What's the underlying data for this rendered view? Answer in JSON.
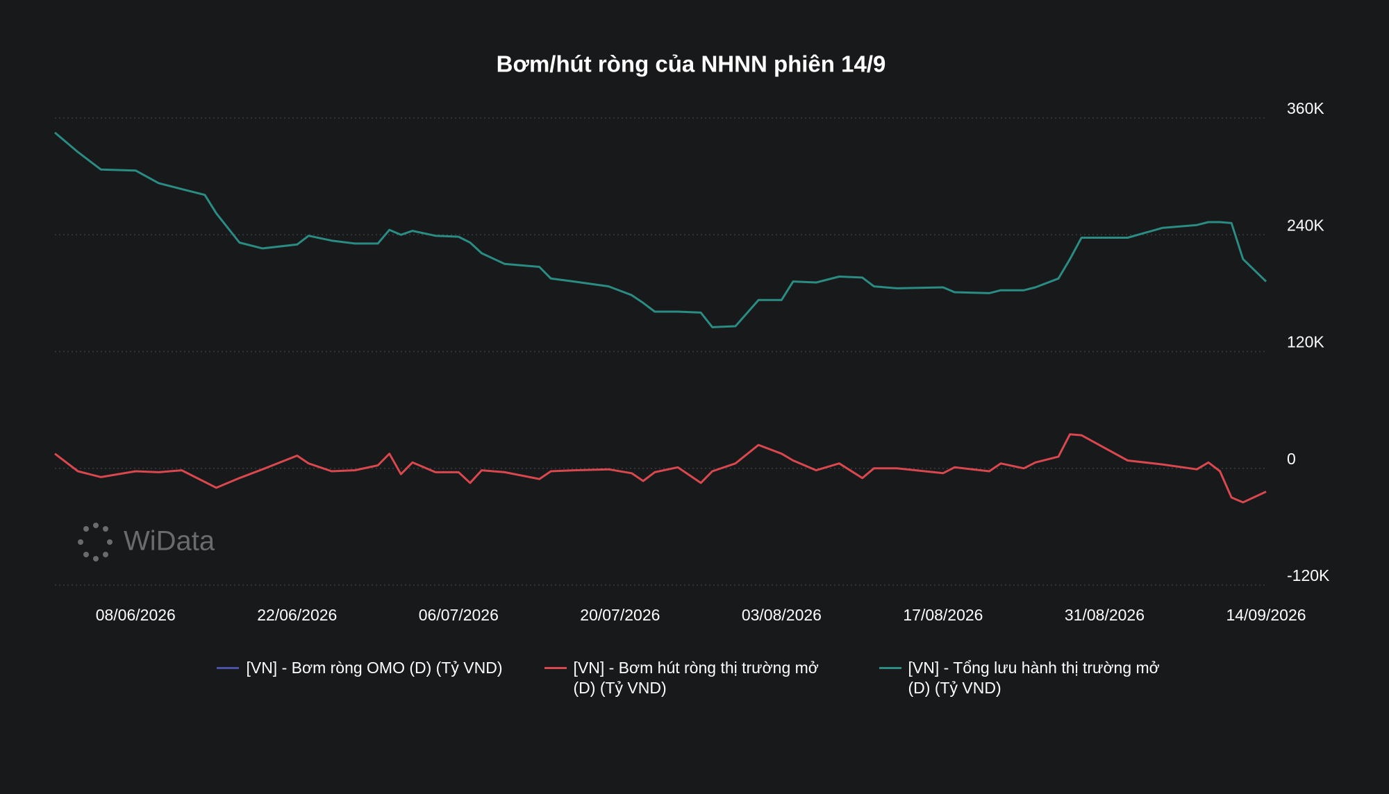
{
  "chart_data": {
    "type": "line",
    "title": "Bơm/hút ròng của NHNN phiên 14/9",
    "watermark": "WiData",
    "x": [
      "01/06/2026",
      "03/06/2026",
      "05/06/2026",
      "08/06/2026",
      "10/06/2026",
      "12/06/2026",
      "14/06/2026",
      "15/06/2026",
      "17/06/2026",
      "19/06/2026",
      "22/06/2026",
      "23/06/2026",
      "25/06/2026",
      "27/06/2026",
      "29/06/2026",
      "30/06/2026",
      "01/07/2026",
      "02/07/2026",
      "04/07/2026",
      "06/07/2026",
      "07/07/2026",
      "08/07/2026",
      "10/07/2026",
      "13/07/2026",
      "14/07/2026",
      "16/07/2026",
      "19/07/2026",
      "21/07/2026",
      "22/07/2026",
      "23/07/2026",
      "25/07/2026",
      "27/07/2026",
      "28/07/2026",
      "30/07/2026",
      "01/08/2026",
      "03/08/2026",
      "04/08/2026",
      "06/08/2026",
      "08/08/2026",
      "10/08/2026",
      "11/08/2026",
      "13/08/2026",
      "17/08/2026",
      "18/08/2026",
      "21/08/2026",
      "22/08/2026",
      "24/08/2026",
      "25/08/2026",
      "27/08/2026",
      "28/08/2026",
      "29/08/2026",
      "02/09/2026",
      "05/09/2026",
      "08/09/2026",
      "09/09/2026",
      "10/09/2026",
      "11/09/2026",
      "12/09/2026",
      "14/09/2026"
    ],
    "series": [
      {
        "name": "[VN] - Bơm ròng OMO (D) (Tỷ VND)",
        "color": "#4b50a8",
        "values": [
          null,
          null,
          null,
          null,
          null,
          null,
          null,
          null,
          null,
          null,
          null,
          null,
          null,
          null,
          null,
          null,
          null,
          null,
          null,
          null,
          null,
          null,
          null,
          null,
          null,
          null,
          null,
          null,
          null,
          null,
          null,
          null,
          null,
          null,
          null,
          null,
          null,
          null,
          null,
          null,
          null,
          null,
          null,
          null,
          null,
          null,
          null,
          null,
          null,
          null,
          null,
          null,
          null,
          null,
          null,
          null,
          null,
          null,
          null
        ]
      },
      {
        "name": "[VN] - Bơm hút ròng thị trường mở (D) (Tỷ VND)",
        "color": "#d9484f",
        "values": [
          15000,
          -3000,
          -9000,
          -3000,
          -4000,
          -2000,
          -14000,
          -20000,
          -10000,
          -1000,
          13000,
          5000,
          -3000,
          -2000,
          3000,
          15000,
          -6000,
          6000,
          -4000,
          -4000,
          -15000,
          -2000,
          -4000,
          -11000,
          -3000,
          -2000,
          -1000,
          -5000,
          -13000,
          -4000,
          1000,
          -15000,
          -3000,
          5000,
          24000,
          15000,
          8000,
          -2000,
          5000,
          -10000,
          0,
          0,
          -5000,
          1000,
          -3000,
          5000,
          0,
          6000,
          12000,
          35000,
          34000,
          8000,
          4000,
          -1000,
          6000,
          -3000,
          -30000,
          -35000,
          -24000
        ]
      },
      {
        "name": "[VN] - Tổng lưu hành thị trường mở (D) (Tỷ VND)",
        "color": "#2a8c82",
        "values": [
          345000,
          325000,
          307000,
          306000,
          293000,
          287000,
          281000,
          262000,
          232000,
          226000,
          230000,
          239000,
          234000,
          231000,
          231000,
          245000,
          240000,
          244000,
          239000,
          238000,
          232000,
          221000,
          210000,
          207000,
          195000,
          192000,
          187000,
          178000,
          170000,
          161000,
          161000,
          160000,
          145000,
          146000,
          173000,
          173000,
          192000,
          191000,
          197000,
          196000,
          187000,
          185000,
          186000,
          181000,
          180000,
          183000,
          183000,
          186000,
          195000,
          215000,
          237000,
          237000,
          247000,
          250000,
          253000,
          253000,
          252000,
          215000,
          192000
        ]
      }
    ],
    "xlim": [
      "01/06/2026",
      "14/09/2026"
    ],
    "xticks": [
      "08/06/2026",
      "22/06/2026",
      "06/07/2026",
      "20/07/2026",
      "03/08/2026",
      "17/08/2026",
      "31/08/2026",
      "14/09/2026"
    ],
    "ylim": [
      -120000,
      360000
    ],
    "yticks": [
      {
        "value": -120000,
        "label": "-120K"
      },
      0,
      {
        "value": 120000,
        "label": "120K"
      },
      {
        "value": 240000,
        "label": "240K"
      },
      {
        "value": 360000,
        "label": "360K"
      }
    ],
    "grid": true
  }
}
